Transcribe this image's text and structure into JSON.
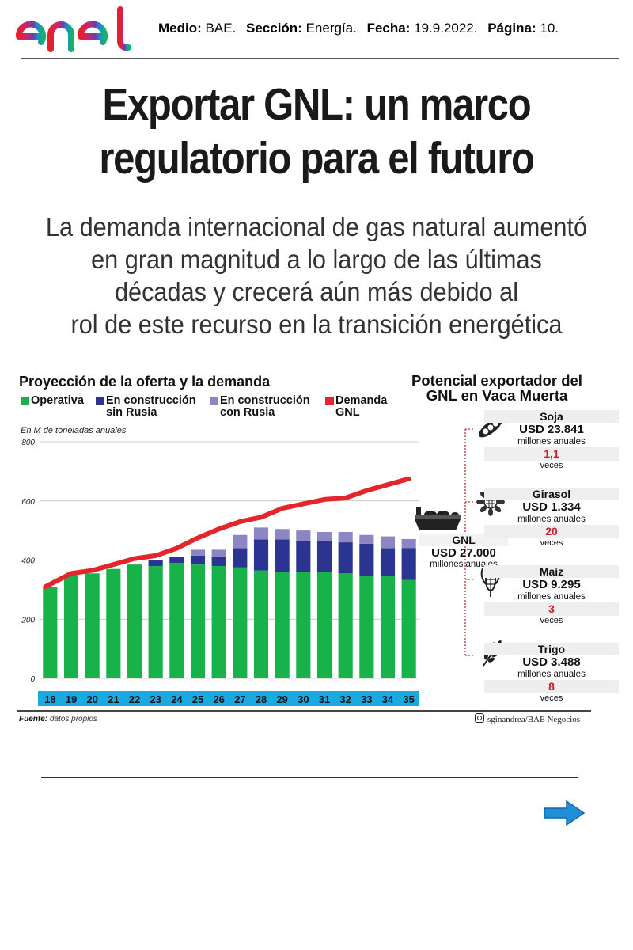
{
  "header": {
    "brand": "enel",
    "medio_label": "Medio:",
    "medio_value": "BAE.",
    "seccion_label": "Sección:",
    "seccion_value": "Energía.",
    "fecha_label": "Fecha:",
    "fecha_value": "19.9.2022.",
    "pagina_label": "Página:",
    "pagina_value": "10."
  },
  "article": {
    "headline_line1": "Exportar GNL: un marco",
    "headline_line2": "regulatorio para el futuro",
    "subtitle_line1": "La demanda internacional de gas natural aumentó",
    "subtitle_line2": "en gran magnitud a lo largo de las últimas",
    "subtitle_line3": "décadas y crecerá aún más debido al",
    "subtitle_line4": "rol de este recurso en la transición energética"
  },
  "colors": {
    "operativa": "#17b24a",
    "construccion_sin_rusia": "#2b3490",
    "construccion_con_rusia": "#8c86c4",
    "demanda": "#e3262b",
    "axis_band": "#1ba9e1",
    "arrow": "#1e90d8"
  },
  "chart_data": {
    "type": "bar",
    "title": "Proyección de la oferta y la demanda",
    "ylabel": "En M de toneladas anuales",
    "ylim": [
      0,
      800
    ],
    "yticks": [
      "0",
      "200",
      "400",
      "600",
      "800"
    ],
    "categories": [
      "18",
      "19",
      "20",
      "21",
      "22",
      "23",
      "24",
      "25",
      "26",
      "27",
      "28",
      "29",
      "30",
      "31",
      "32",
      "33",
      "34",
      "35"
    ],
    "series": [
      {
        "name": "Operativa",
        "kind": "stack",
        "values": [
          310,
          350,
          355,
          370,
          385,
          380,
          390,
          385,
          380,
          375,
          365,
          360,
          360,
          360,
          355,
          345,
          345,
          333
        ]
      },
      {
        "name": "En construcción sin Rusia",
        "kind": "stack",
        "values": [
          0,
          0,
          0,
          0,
          0,
          20,
          20,
          30,
          30,
          65,
          105,
          110,
          105,
          105,
          105,
          110,
          95,
          108
        ]
      },
      {
        "name": "En construcción con Rusia",
        "kind": "stack",
        "values": [
          0,
          0,
          0,
          0,
          0,
          0,
          0,
          20,
          25,
          45,
          40,
          35,
          35,
          30,
          35,
          30,
          40,
          30
        ]
      },
      {
        "name": "Demanda GNL",
        "kind": "line",
        "values": [
          310,
          355,
          365,
          385,
          405,
          415,
          440,
          475,
          505,
          530,
          545,
          575,
          590,
          605,
          610,
          635,
          655,
          675
        ]
      }
    ],
    "legend": [
      {
        "label_line1": "Operativa",
        "label_line2": ""
      },
      {
        "label_line1": "En construcción",
        "label_line2": "sin Rusia"
      },
      {
        "label_line1": "En construcción",
        "label_line2": "con Rusia"
      },
      {
        "label_line1": "Demanda",
        "label_line2": "GNL"
      }
    ]
  },
  "panel": {
    "title_line1": "Potencial exportador del",
    "title_line2": "GNL en Vaca Muerta",
    "gnl": {
      "name": "GNL",
      "value": "USD 27.000",
      "unit": "millones anuales"
    },
    "crops": [
      {
        "name": "Soja",
        "value": "USD 23.841",
        "unit": "millones anuales",
        "multiple": "1,1",
        "times": "veces",
        "icon": "soy-pod-icon"
      },
      {
        "name": "Girasol",
        "value": "USD 1.334",
        "unit": "millones anuales",
        "multiple": "20",
        "times": "veces",
        "icon": "sunflower-icon"
      },
      {
        "name": "Maíz",
        "value": "USD 9.295",
        "unit": "millones anuales",
        "multiple": "3",
        "times": "veces",
        "icon": "corn-icon"
      },
      {
        "name": "Trigo",
        "value": "USD 3.488",
        "unit": "millones anuales",
        "multiple": "8",
        "times": "veces",
        "icon": "wheat-icon"
      }
    ]
  },
  "footer": {
    "source_label": "Fuente:",
    "source_value": "datos propios",
    "credit": "sginandrea/BAE Negocios"
  }
}
